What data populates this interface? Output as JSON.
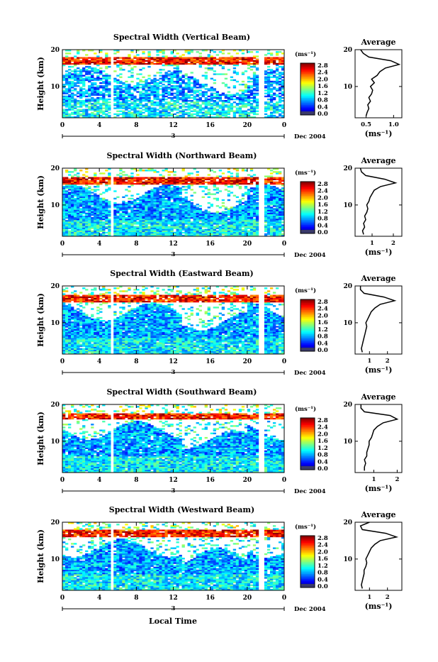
{
  "figure": {
    "bottom_xlabel": "Local Time",
    "panel_titles": [
      "Spectral Width (Vertical Beam)",
      "Spectral Width (Northward Beam)",
      "Spectral Width (Eastward Beam)",
      "Spectral Width (Southward Beam)",
      "Spectral Width (Westward Beam)"
    ]
  },
  "chart_data": [
    {
      "type": "heatmap",
      "title": "Spectral Width (Vertical Beam)",
      "ylabel": "Height (km)",
      "x_ticks": [
        "0",
        "4",
        "8",
        "12",
        "16",
        "20",
        "0"
      ],
      "y_ticks": [
        "20",
        "10"
      ],
      "date_axis": {
        "day": "3",
        "month_year": "Dec 2004"
      },
      "xlim": [
        0,
        24
      ],
      "ylim": [
        1.5,
        20
      ],
      "colorbar": {
        "unit": "(ms⁻¹)",
        "ticks": [
          "2.8",
          "2.4",
          "2.0",
          "1.6",
          "1.2",
          "0.8",
          "0.4",
          "0.0"
        ],
        "range": [
          0,
          3.0
        ]
      },
      "data_gaps_hours": [
        [
          5.3,
          5.6
        ],
        [
          21.3,
          21.8
        ]
      ],
      "tropopause_band_km": [
        16,
        18
      ],
      "average_profile": {
        "title": "Average",
        "xlabel": "(ms⁻¹)",
        "x_ticks": [
          "0.5",
          "1.0"
        ],
        "xlim": [
          0.3,
          1.15
        ],
        "height_km": [
          2,
          3,
          4,
          5,
          6,
          7,
          8,
          9,
          10,
          11,
          12,
          13,
          14,
          15,
          16,
          17,
          18,
          19,
          20
        ],
        "width_ms": [
          0.5,
          0.52,
          0.55,
          0.53,
          0.58,
          0.55,
          0.6,
          0.62,
          0.58,
          0.65,
          0.6,
          0.7,
          0.75,
          0.85,
          1.1,
          0.95,
          0.55,
          0.45,
          0.4
        ]
      }
    },
    {
      "type": "heatmap",
      "title": "Spectral Width (Northward Beam)",
      "ylabel": "Height (km)",
      "x_ticks": [
        "0",
        "4",
        "8",
        "12",
        "16",
        "20",
        "0"
      ],
      "y_ticks": [
        "20",
        "10"
      ],
      "date_axis": {
        "day": "3",
        "month_year": "Dec 2004"
      },
      "xlim": [
        0,
        24
      ],
      "ylim": [
        1.5,
        20
      ],
      "colorbar": {
        "unit": "(ms⁻¹)",
        "ticks": [
          "2.8",
          "2.4",
          "2.0",
          "1.6",
          "1.2",
          "0.8",
          "0.4",
          "0.0"
        ],
        "range": [
          0,
          3.0
        ]
      },
      "data_gaps_hours": [
        [
          5.3,
          5.6
        ],
        [
          21.3,
          21.8
        ]
      ],
      "tropopause_band_km": [
        15.5,
        17.5
      ],
      "average_profile": {
        "title": "Average",
        "xlabel": "(ms⁻¹)",
        "x_ticks": [
          "1",
          "2"
        ],
        "xlim": [
          0.2,
          2.4
        ],
        "height_km": [
          2,
          3,
          4,
          5,
          6,
          7,
          8,
          9,
          10,
          11,
          12,
          13,
          14,
          15,
          16,
          17,
          18,
          19,
          20
        ],
        "width_ms": [
          0.6,
          0.55,
          0.65,
          0.6,
          0.7,
          0.65,
          0.75,
          0.8,
          0.75,
          0.85,
          0.9,
          1.0,
          1.1,
          1.4,
          2.1,
          1.6,
          0.7,
          0.5,
          0.45
        ]
      }
    },
    {
      "type": "heatmap",
      "title": "Spectral Width (Eastward Beam)",
      "ylabel": "Height (km)",
      "x_ticks": [
        "0",
        "4",
        "8",
        "12",
        "16",
        "20",
        "0"
      ],
      "y_ticks": [
        "20",
        "10"
      ],
      "date_axis": {
        "day": "3",
        "month_year": "Dec 2004"
      },
      "xlim": [
        0,
        24
      ],
      "ylim": [
        1.5,
        20
      ],
      "colorbar": {
        "unit": "(ms⁻¹)",
        "ticks": [
          "2.8",
          "2.4",
          "2.0",
          "1.6",
          "1.2",
          "0.8",
          "0.4",
          "0.0"
        ],
        "range": [
          0,
          3.0
        ]
      },
      "data_gaps_hours": [
        [
          5.3,
          5.6
        ],
        [
          21.3,
          21.8
        ]
      ],
      "tropopause_band_km": [
        15.5,
        17.5
      ],
      "average_profile": {
        "title": "Average",
        "xlabel": "(ms⁻¹)",
        "x_ticks": [
          "1",
          "2"
        ],
        "xlim": [
          0.2,
          2.8
        ],
        "height_km": [
          2,
          3,
          4,
          5,
          6,
          7,
          8,
          9,
          10,
          11,
          12,
          13,
          14,
          15,
          16,
          17,
          18,
          19,
          20
        ],
        "width_ms": [
          0.6,
          0.55,
          0.6,
          0.65,
          0.7,
          0.75,
          0.8,
          0.85,
          0.8,
          0.9,
          1.0,
          1.1,
          1.3,
          1.6,
          2.4,
          1.8,
          0.7,
          0.5,
          0.5
        ]
      }
    },
    {
      "type": "heatmap",
      "title": "Spectral Width (Southward Beam)",
      "ylabel": "Height (km)",
      "x_ticks": [
        "0",
        "4",
        "8",
        "12",
        "16",
        "20",
        "0"
      ],
      "y_ticks": [
        "20",
        "10"
      ],
      "date_axis": {
        "day": "3",
        "month_year": "Dec 2004"
      },
      "xlim": [
        0,
        24
      ],
      "ylim": [
        1.5,
        20
      ],
      "colorbar": {
        "unit": "(ms⁻¹)",
        "ticks": [
          "2.8",
          "2.4",
          "2.0",
          "1.6",
          "1.2",
          "0.8",
          "0.4",
          "0.0"
        ],
        "range": [
          0,
          3.0
        ]
      },
      "data_gaps_hours": [
        [
          5.3,
          5.6
        ],
        [
          21.3,
          21.8
        ]
      ],
      "tropopause_band_km": [
        16,
        17.5
      ],
      "average_profile": {
        "title": "Average",
        "xlabel": "(ms⁻¹)",
        "x_ticks": [
          "1",
          "2"
        ],
        "xlim": [
          0.2,
          2.2
        ],
        "height_km": [
          2,
          3,
          4,
          5,
          6,
          7,
          8,
          9,
          10,
          11,
          12,
          13,
          14,
          15,
          16,
          17,
          18,
          19,
          20
        ],
        "width_ms": [
          0.6,
          0.6,
          0.65,
          0.6,
          0.7,
          0.7,
          0.75,
          0.8,
          0.8,
          0.9,
          0.95,
          1.0,
          1.15,
          1.4,
          2.0,
          1.7,
          0.6,
          0.45,
          0.45
        ]
      }
    },
    {
      "type": "heatmap",
      "title": "Spectral Width (Westward Beam)",
      "ylabel": "Height (km)",
      "x_ticks": [
        "0",
        "4",
        "8",
        "12",
        "16",
        "20",
        "0"
      ],
      "y_ticks": [
        "20",
        "10"
      ],
      "date_axis": {
        "day": "3",
        "month_year": "Dec 2004"
      },
      "xlim": [
        0,
        24
      ],
      "ylim": [
        1.5,
        20
      ],
      "colorbar": {
        "unit": "(ms⁻¹)",
        "ticks": [
          "2.8",
          "2.4",
          "2.0",
          "1.6",
          "1.2",
          "0.8",
          "0.4",
          "0.0"
        ],
        "range": [
          0,
          3.0
        ]
      },
      "data_gaps_hours": [
        [
          5.3,
          5.6
        ],
        [
          21.3,
          21.8
        ]
      ],
      "tropopause_band_km": [
        16,
        18
      ],
      "average_profile": {
        "title": "Average",
        "xlabel": "(ms⁻¹)",
        "x_ticks": [
          "1",
          "2"
        ],
        "xlim": [
          0.2,
          2.8
        ],
        "height_km": [
          2,
          3,
          4,
          5,
          6,
          7,
          8,
          9,
          10,
          11,
          12,
          13,
          14,
          15,
          16,
          17,
          18,
          19,
          20
        ],
        "width_ms": [
          0.6,
          0.55,
          0.6,
          0.65,
          0.7,
          0.7,
          0.8,
          0.85,
          0.8,
          0.9,
          1.0,
          1.1,
          1.3,
          1.6,
          2.5,
          1.9,
          0.6,
          0.5,
          1.0
        ]
      }
    }
  ]
}
